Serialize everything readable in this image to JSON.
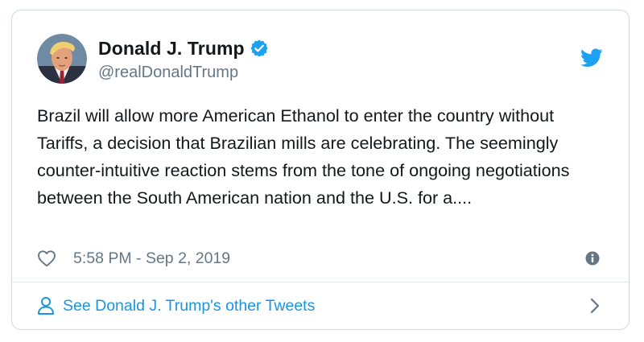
{
  "tweet": {
    "author": {
      "display_name": "Donald J. Trump",
      "handle": "@realDonaldTrump",
      "verified": true
    },
    "text": "Brazil will allow more American Ethanol to enter the country without Tariffs, a decision that Brazilian mills are celebrating. The seemingly counter-intuitive reaction stems from the tone of ongoing negotiations between the South American nation and the U.S. for a....",
    "timestamp": "5:58 PM - Sep 2, 2019"
  },
  "footer": {
    "link_label": "See Donald J. Trump's other Tweets"
  },
  "colors": {
    "brand_blue": "#1da1f2",
    "link_blue": "#1b95e0",
    "muted_gray": "#657786",
    "text": "#14171a",
    "border": "#cfd9de"
  },
  "icons": {
    "brand": "twitter-bird-icon",
    "verified": "verified-badge-icon",
    "like": "heart-icon",
    "info": "info-icon",
    "profile": "person-icon",
    "navigate": "chevron-right-icon"
  }
}
